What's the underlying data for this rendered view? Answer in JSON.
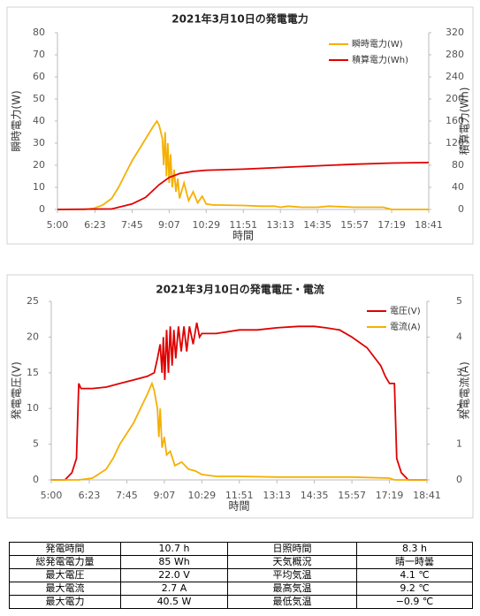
{
  "chart_data": [
    {
      "type": "line",
      "title": "2021年3月10日の発電電力",
      "xlabel": "時間",
      "ylabel": "瞬時電力(W)",
      "y2label": "積算電力(Wh)",
      "xlim": [
        "5:00",
        "18:41"
      ],
      "xticks": [
        "5:00",
        "6:23",
        "7:45",
        "9:07",
        "10:29",
        "11:51",
        "13:13",
        "14:35",
        "15:57",
        "17:19",
        "18:41"
      ],
      "ylim": [
        0,
        80
      ],
      "yticks": [
        0,
        10,
        20,
        30,
        40,
        50,
        60,
        70,
        80
      ],
      "y2lim": [
        0,
        320
      ],
      "y2ticks": [
        0,
        40,
        80,
        120,
        160,
        200,
        240,
        280,
        320
      ],
      "grid": false,
      "legend": "upper right",
      "series": [
        {
          "name": "瞬時電力(W)",
          "color": "#f5b000",
          "axis": "y",
          "x": [
            "5:00",
            "6:00",
            "6:20",
            "6:40",
            "7:00",
            "7:15",
            "7:30",
            "7:45",
            "8:00",
            "8:15",
            "8:30",
            "8:40",
            "8:45",
            "8:52",
            "8:55",
            "8:58",
            "9:01",
            "9:04",
            "9:07",
            "9:10",
            "9:14",
            "9:18",
            "9:22",
            "9:26",
            "9:30",
            "9:40",
            "9:50",
            "10:00",
            "10:10",
            "10:20",
            "10:29",
            "10:45",
            "11:00",
            "11:51",
            "12:30",
            "13:00",
            "13:13",
            "13:30",
            "14:00",
            "14:35",
            "15:00",
            "15:57",
            "16:30",
            "17:00",
            "17:10",
            "17:19",
            "18:41"
          ],
          "values": [
            0,
            0,
            0.5,
            2,
            5,
            10,
            16,
            22,
            27,
            32,
            37,
            40,
            38,
            32,
            20,
            35,
            15,
            30,
            12,
            25,
            10,
            18,
            8,
            14,
            5,
            12,
            4,
            8,
            3,
            6,
            2.5,
            2,
            2,
            1.8,
            1.5,
            1.5,
            1,
            1.5,
            1,
            1,
            1.5,
            1,
            1,
            1,
            0.5,
            0,
            0
          ]
        },
        {
          "name": "積算電力(Wh)",
          "color": "#e00000",
          "axis": "y2",
          "x": [
            "5:00",
            "7:00",
            "7:45",
            "8:15",
            "8:45",
            "9:07",
            "9:30",
            "10:00",
            "10:29",
            "11:51",
            "13:13",
            "14:35",
            "15:57",
            "17:19",
            "18:41"
          ],
          "values": [
            0,
            1,
            10,
            22,
            45,
            58,
            65,
            69,
            71,
            73,
            76,
            79,
            82,
            84,
            85
          ]
        }
      ]
    },
    {
      "type": "line",
      "title": "2021年3月10日の発電電圧・電流",
      "xlabel": "時間",
      "ylabel": "発電電圧(V)",
      "y2label": "発電電流(A)",
      "xlim": [
        "5:00",
        "18:41"
      ],
      "xticks": [
        "5:00",
        "6:23",
        "7:45",
        "9:07",
        "10:29",
        "11:51",
        "13:13",
        "14:35",
        "15:57",
        "17:19",
        "18:41"
      ],
      "ylim": [
        0,
        25
      ],
      "yticks": [
        0,
        5,
        10,
        15,
        20,
        25
      ],
      "y2lim": [
        0,
        5
      ],
      "y2ticks": [
        0,
        1,
        2,
        3,
        4,
        5
      ],
      "grid": false,
      "legend": "upper right",
      "series": [
        {
          "name": "電圧(V)",
          "color": "#e00000",
          "axis": "y",
          "x": [
            "5:00",
            "5:30",
            "5:45",
            "5:55",
            "6:00",
            "6:05",
            "6:30",
            "7:00",
            "7:30",
            "8:00",
            "8:30",
            "8:45",
            "8:52",
            "8:58",
            "9:02",
            "9:05",
            "9:08",
            "9:12",
            "9:16",
            "9:20",
            "9:24",
            "9:28",
            "9:32",
            "9:38",
            "9:44",
            "9:50",
            "9:56",
            "10:02",
            "10:10",
            "10:18",
            "10:24",
            "10:29",
            "11:00",
            "11:51",
            "12:30",
            "13:13",
            "14:00",
            "14:35",
            "15:00",
            "15:30",
            "15:57",
            "16:30",
            "17:00",
            "17:10",
            "17:19",
            "17:30",
            "17:35",
            "17:45",
            "18:00",
            "18:41"
          ],
          "values": [
            0,
            0,
            1,
            3,
            13.5,
            12.8,
            12.8,
            13,
            13.5,
            14,
            14.5,
            15,
            17,
            19,
            15,
            20,
            14,
            21,
            15,
            21.5,
            16,
            21,
            17,
            21.5,
            18,
            21.5,
            18,
            21.5,
            19,
            22,
            20,
            20.5,
            20.5,
            21,
            21,
            21.3,
            21.5,
            21.5,
            21.3,
            21,
            20,
            18.5,
            16,
            14.5,
            13.5,
            13.5,
            3,
            1,
            0,
            0
          ]
        },
        {
          "name": "電流(A)",
          "color": "#f5b000",
          "axis": "y2",
          "x": [
            "5:00",
            "6:00",
            "6:30",
            "7:00",
            "7:15",
            "7:30",
            "7:45",
            "8:00",
            "8:15",
            "8:30",
            "8:40",
            "8:45",
            "8:52",
            "8:55",
            "8:58",
            "9:02",
            "9:07",
            "9:12",
            "9:20",
            "9:30",
            "9:45",
            "10:00",
            "10:15",
            "10:29",
            "11:00",
            "11:51",
            "13:13",
            "14:35",
            "15:57",
            "17:19",
            "17:30",
            "18:41"
          ],
          "values": [
            0,
            0,
            0.05,
            0.3,
            0.6,
            1,
            1.3,
            1.6,
            2,
            2.4,
            2.7,
            2.5,
            2,
            1.2,
            2,
            0.9,
            1.2,
            0.7,
            0.8,
            0.4,
            0.5,
            0.3,
            0.25,
            0.15,
            0.1,
            0.1,
            0.08,
            0.08,
            0.08,
            0.05,
            0,
            0
          ]
        }
      ]
    }
  ],
  "table": {
    "rows": [
      [
        "発電時間",
        "10.7 h",
        "日照時間",
        "8.3 h"
      ],
      [
        "総発電電力量",
        "85 Wh",
        "天気概況",
        "晴一時曇"
      ],
      [
        "最大電圧",
        "22.0 V",
        "平均気温",
        "4.1 ℃"
      ],
      [
        "最大電流",
        "2.7 A",
        "最高気温",
        "9.2 ℃"
      ],
      [
        "最大電力",
        "40.5 W",
        "最低気温",
        "−0.9 ℃"
      ]
    ]
  }
}
